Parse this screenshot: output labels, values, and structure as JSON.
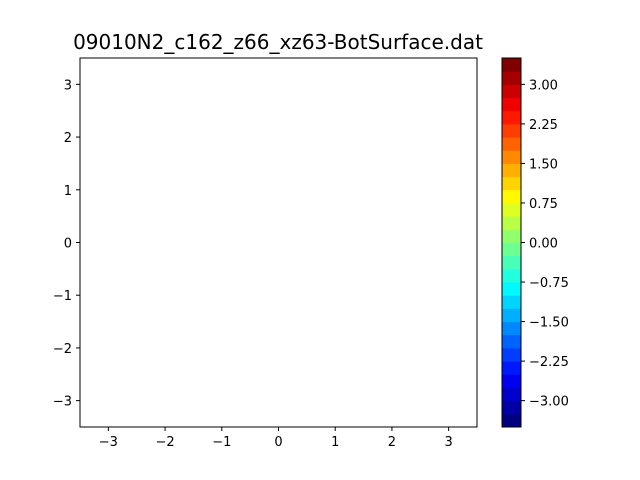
{
  "chart_data": {
    "type": "heatmap",
    "title": "09010N2_c162_z66_xz63-BotSurface.dat",
    "xlabel": "",
    "ylabel": "",
    "xlim": [
      -3.5,
      3.5
    ],
    "ylim": [
      -3.5,
      3.5
    ],
    "x_ticks": [
      -3,
      -2,
      -1,
      0,
      1,
      2,
      3
    ],
    "x_tick_labels": [
      "−3",
      "−2",
      "−1",
      "0",
      "1",
      "2",
      "3"
    ],
    "y_ticks": [
      -3,
      -2,
      -1,
      0,
      1,
      2,
      3
    ],
    "y_tick_labels": [
      "−3",
      "−2",
      "−1",
      "0",
      "1",
      "2",
      "3"
    ],
    "grid": false,
    "values": [],
    "colorbar": {
      "colormap": "jet",
      "range": [
        -3.5,
        3.5
      ],
      "levels": 28,
      "ticks": [
        -3.0,
        -2.25,
        -1.5,
        -0.75,
        0.0,
        0.75,
        1.5,
        2.25,
        3.0
      ],
      "tick_labels": [
        "−3.00",
        "−2.25",
        "−1.50",
        "−0.75",
        "0.00",
        "0.75",
        "1.50",
        "2.25",
        "3.00"
      ]
    }
  }
}
